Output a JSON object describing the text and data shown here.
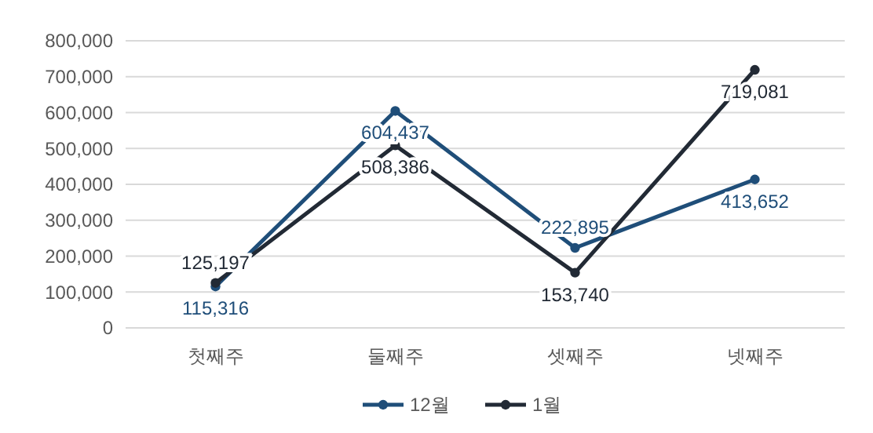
{
  "chart_data": {
    "type": "line",
    "categories": [
      "첫째주",
      "둘째주",
      "셋째주",
      "넷째주"
    ],
    "series": [
      {
        "name": "12월",
        "color": "#1f4e79",
        "values": [
          115316,
          604437,
          222895,
          413652
        ],
        "value_labels": [
          "115,316",
          "604,437",
          "222,895",
          "413,652"
        ]
      },
      {
        "name": "1월",
        "color": "#222a35",
        "values": [
          125197,
          508386,
          153740,
          719081
        ],
        "value_labels": [
          "125,197",
          "508,386",
          "153,740",
          "719,081"
        ]
      }
    ],
    "ylim": [
      0,
      800000
    ],
    "yticks": [
      {
        "value": 0,
        "label": "0"
      },
      {
        "value": 100000,
        "label": "100,000"
      },
      {
        "value": 200000,
        "label": "200,000"
      },
      {
        "value": 300000,
        "label": "300,000"
      },
      {
        "value": 400000,
        "label": "400,000"
      },
      {
        "value": 500000,
        "label": "500,000"
      },
      {
        "value": 600000,
        "label": "600,000"
      },
      {
        "value": 700000,
        "label": "700,000"
      },
      {
        "value": 800000,
        "label": "800,000"
      }
    ],
    "grid": "y",
    "legend": "bottom",
    "marker": "circle"
  }
}
